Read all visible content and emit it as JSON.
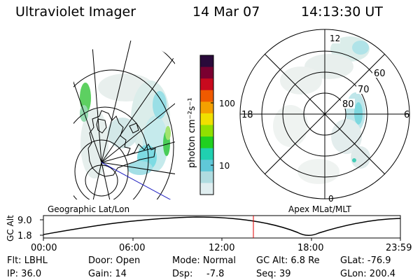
{
  "header": {
    "title": "Ultraviolet Imager",
    "date": "14 Mar 07",
    "time": "14:13:30 UT"
  },
  "colorbar": {
    "unit_label": "photon cm⁻²s⁻¹",
    "ticks": [
      "100",
      "10"
    ],
    "colors": [
      "#2a0a3a",
      "#7a0030",
      "#c80a1e",
      "#f05a00",
      "#f5a000",
      "#f0e000",
      "#90e000",
      "#20d020",
      "#20d0b0",
      "#60c8d8",
      "#b0dce0",
      "#e0eef0"
    ]
  },
  "polar_plot": {
    "mlt_labels": {
      "top": "12",
      "right": "6",
      "bottom": "0",
      "left": "18"
    },
    "lat_labels": [
      "60",
      "70",
      "80"
    ]
  },
  "geo_plot": {
    "caption": "Geographic Lat/Lon"
  },
  "polar_caption": "Apex MLat/MLT",
  "altitude_strip": {
    "axis_label": "GC Alt",
    "y_ticks": [
      "9.0",
      "1.8"
    ],
    "x_ticks": [
      "00:00",
      "06:00",
      "12:00",
      "18:00",
      "23:59"
    ],
    "current_marker_time": "14:13:30"
  },
  "info": {
    "row1": [
      "Flt: LBHL",
      "Door: Open",
      "Mode: Normal",
      "GC Alt: 6.8 Re",
      "GLat: -76.9"
    ],
    "row2": [
      "IP: 36.0",
      "Gain: 14",
      "Dsp:",
      "-7.8",
      "Seq: 39",
      "GLon: 200.4"
    ]
  },
  "colors": {
    "marker": "#e00000",
    "projection_line": "#2020c0"
  }
}
